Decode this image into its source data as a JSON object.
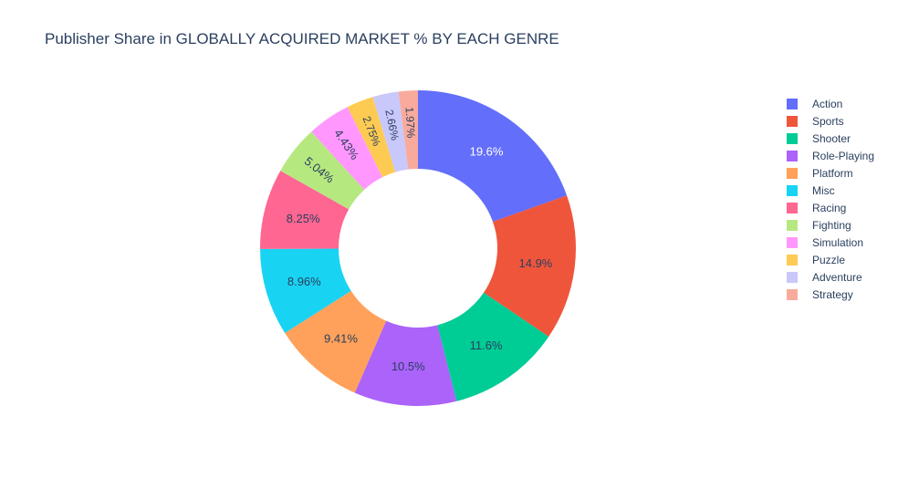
{
  "chart_data": {
    "type": "pie",
    "title": "Publisher Share in GLOBALLY ACQUIRED MARKET % BY EACH GENRE",
    "hole": true,
    "legend_placement": "right",
    "slices": [
      {
        "label": "Action",
        "value": 19.6,
        "text": "19.6%",
        "color": "#636efa",
        "text_color": "#ffffff"
      },
      {
        "label": "Sports",
        "value": 14.9,
        "text": "14.9%",
        "color": "#EF553B",
        "text_color": "#2a3f5f"
      },
      {
        "label": "Shooter",
        "value": 11.6,
        "text": "11.6%",
        "color": "#00cc96",
        "text_color": "#2a3f5f"
      },
      {
        "label": "Role-Playing",
        "value": 10.5,
        "text": "10.5%",
        "color": "#ab63fa",
        "text_color": "#2a3f5f"
      },
      {
        "label": "Platform",
        "value": 9.41,
        "text": "9.41%",
        "color": "#FFA15A",
        "text_color": "#2a3f5f"
      },
      {
        "label": "Misc",
        "value": 8.96,
        "text": "8.96%",
        "color": "#19d3f3",
        "text_color": "#2a3f5f"
      },
      {
        "label": "Racing",
        "value": 8.25,
        "text": "8.25%",
        "color": "#FF6692",
        "text_color": "#2a3f5f"
      },
      {
        "label": "Fighting",
        "value": 5.04,
        "text": "5.04%",
        "color": "#B6E880",
        "text_color": "#2a3f5f"
      },
      {
        "label": "Simulation",
        "value": 4.43,
        "text": "4.43%",
        "color": "#FF97FF",
        "text_color": "#2a3f5f"
      },
      {
        "label": "Puzzle",
        "value": 2.75,
        "text": "2.75%",
        "color": "#FECB52",
        "text_color": "#2a3f5f"
      },
      {
        "label": "Adventure",
        "value": 2.66,
        "text": "2.66%",
        "color": "#c8c8fa",
        "text_color": "#2a3f5f"
      },
      {
        "label": "Strategy",
        "value": 1.97,
        "text": "1.97%",
        "color": "#f8ab9d",
        "text_color": "#2a3f5f"
      }
    ]
  }
}
